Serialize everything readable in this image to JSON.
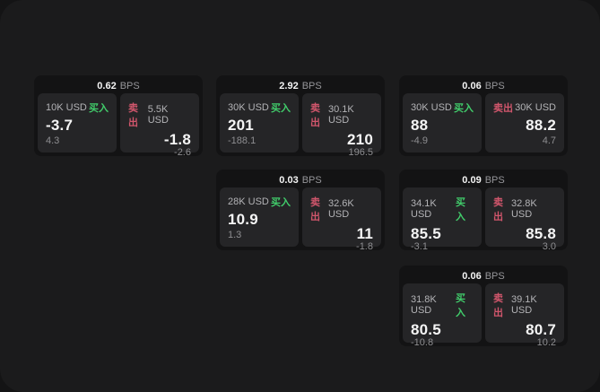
{
  "labels": {
    "bps_unit": "BPS",
    "buy": "买入",
    "sell": "卖出"
  },
  "colors": {
    "window_background": "#1b1b1c",
    "card_background": "#131314",
    "panel_background": "#252527",
    "buy_green": "#41cd6b",
    "sell_red": "#d1566c",
    "primary_text": "#f5f5f5",
    "secondary_text": "#8e8e91"
  },
  "cards": [
    {
      "bps": "0.62",
      "buy": {
        "amount": "10K USD",
        "price": "-3.7",
        "delta": "4.3"
      },
      "sell": {
        "amount": "5.5K USD",
        "price": "-1.8",
        "delta": "-2.6"
      }
    },
    {
      "bps": "2.92",
      "buy": {
        "amount": "30K USD",
        "price": "201",
        "delta": "-188.1"
      },
      "sell": {
        "amount": "30.1K USD",
        "price": "210",
        "delta": "196.5"
      }
    },
    {
      "bps": "0.06",
      "buy": {
        "amount": "30K USD",
        "price": "88",
        "delta": "-4.9"
      },
      "sell": {
        "amount": "30K USD",
        "price": "88.2",
        "delta": "4.7"
      }
    },
    {
      "bps": "0.03",
      "buy": {
        "amount": "28K USD",
        "price": "10.9",
        "delta": "1.3"
      },
      "sell": {
        "amount": "32.6K USD",
        "price": "11",
        "delta": "-1.8"
      }
    },
    {
      "bps": "0.09",
      "buy": {
        "amount": "34.1K USD",
        "price": "85.5",
        "delta": "-3.1"
      },
      "sell": {
        "amount": "32.8K USD",
        "price": "85.8",
        "delta": "3.0"
      }
    },
    {
      "bps": "0.06",
      "buy": {
        "amount": "31.8K USD",
        "price": "80.5",
        "delta": "-10.8"
      },
      "sell": {
        "amount": "39.1K USD",
        "price": "80.7",
        "delta": "10.2"
      }
    }
  ]
}
